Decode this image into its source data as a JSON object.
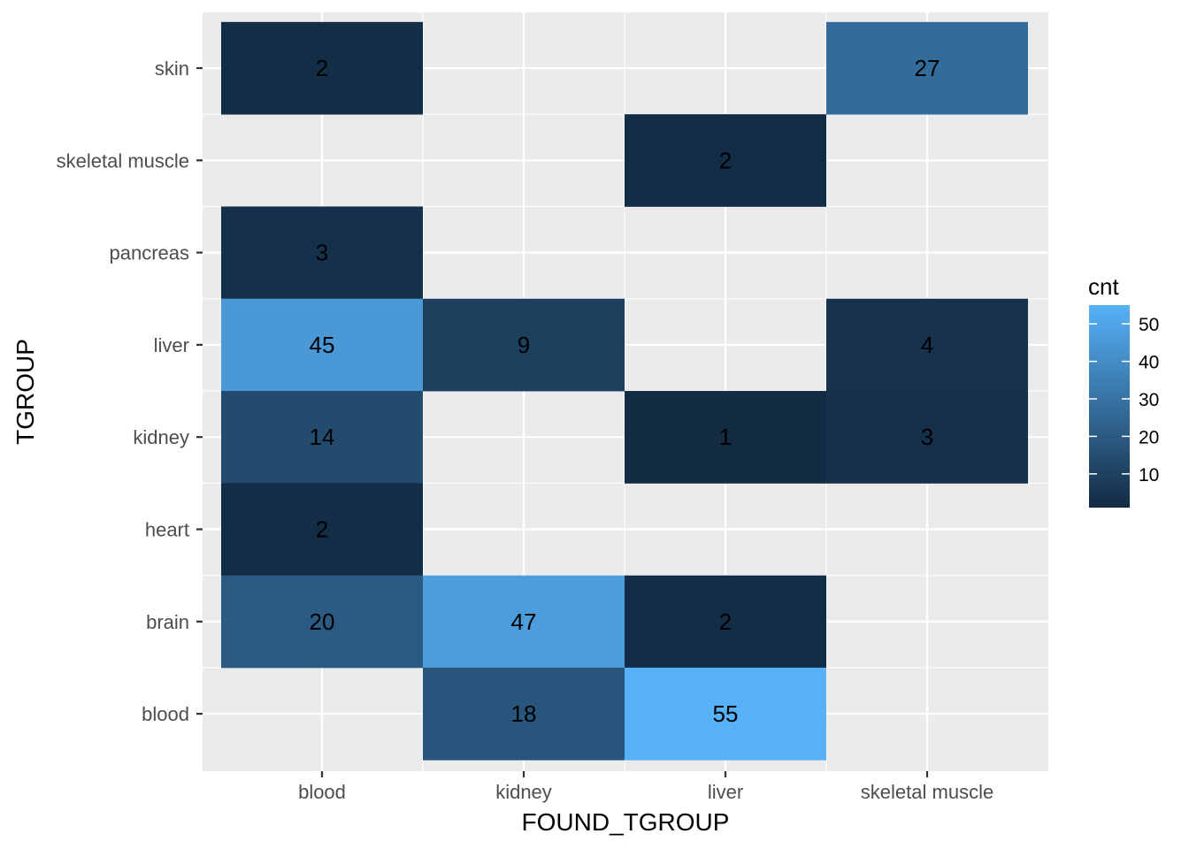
{
  "chart_data": {
    "type": "heatmap",
    "xlabel": "FOUND_TGROUP",
    "ylabel": "TGROUP",
    "x_categories": [
      "blood",
      "kidney",
      "liver",
      "skeletal muscle"
    ],
    "y_categories": [
      "blood",
      "brain",
      "heart",
      "kidney",
      "liver",
      "pancreas",
      "skeletal muscle",
      "skin"
    ],
    "cells": [
      {
        "x": "blood",
        "y": "skin",
        "value": 2
      },
      {
        "x": "skeletal muscle",
        "y": "skin",
        "value": 27
      },
      {
        "x": "liver",
        "y": "skeletal muscle",
        "value": 2
      },
      {
        "x": "blood",
        "y": "pancreas",
        "value": 3
      },
      {
        "x": "blood",
        "y": "liver",
        "value": 45
      },
      {
        "x": "kidney",
        "y": "liver",
        "value": 9
      },
      {
        "x": "skeletal muscle",
        "y": "liver",
        "value": 4
      },
      {
        "x": "blood",
        "y": "kidney",
        "value": 14
      },
      {
        "x": "liver",
        "y": "kidney",
        "value": 1
      },
      {
        "x": "skeletal muscle",
        "y": "kidney",
        "value": 3
      },
      {
        "x": "blood",
        "y": "heart",
        "value": 2
      },
      {
        "x": "blood",
        "y": "brain",
        "value": 20
      },
      {
        "x": "kidney",
        "y": "brain",
        "value": 47
      },
      {
        "x": "liver",
        "y": "brain",
        "value": 2
      },
      {
        "x": "kidney",
        "y": "blood",
        "value": 18
      },
      {
        "x": "liver",
        "y": "blood",
        "value": 55
      }
    ],
    "legend": {
      "title": "cnt",
      "ticks": [
        10,
        20,
        30,
        40,
        50
      ],
      "min": 1,
      "max": 55,
      "low_color": "#132B43",
      "high_color": "#56B1F7"
    },
    "panel_background": "#EBEBEB",
    "grid": true
  }
}
